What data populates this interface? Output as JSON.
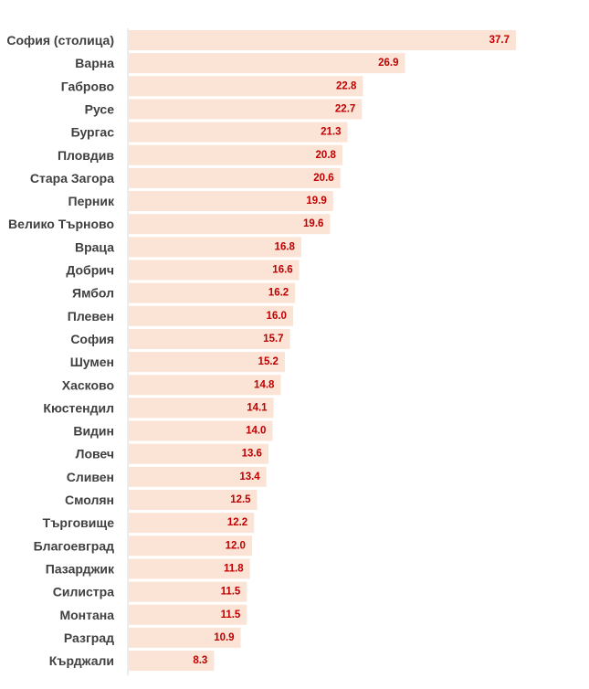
{
  "chart_data": {
    "type": "bar",
    "orientation": "horizontal",
    "title": "",
    "xlabel": "",
    "ylabel": "",
    "xlim": [
      0,
      37.7
    ],
    "grid": false,
    "legend": "none",
    "bar_color": "#fbe3d6",
    "value_label_color": "#c00000",
    "category_label_color": "#404040",
    "axis_color": "#d9d9d9",
    "categories": [
      "София (столица)",
      "Варна",
      "Габрово",
      "Русе",
      "Бургас",
      "Пловдив",
      "Стара Загора",
      "Перник",
      "Велико Търново",
      "Враца",
      "Добрич",
      "Ямбол",
      "Плевен",
      "София",
      "Шумен",
      "Хасково",
      "Кюстендил",
      "Видин",
      "Ловеч",
      "Сливен",
      "Смолян",
      "Търговище",
      "Благоевград",
      "Пазарджик",
      "Силистра",
      "Монтана",
      "Разград",
      "Кърджали"
    ],
    "values": [
      37.7,
      26.9,
      22.8,
      22.7,
      21.3,
      20.8,
      20.6,
      19.9,
      19.6,
      16.8,
      16.6,
      16.2,
      16.0,
      15.7,
      15.2,
      14.8,
      14.1,
      14.0,
      13.6,
      13.4,
      12.5,
      12.2,
      12.0,
      11.8,
      11.5,
      11.5,
      10.9,
      8.3
    ],
    "value_labels": [
      "37.7",
      "26.9",
      "22.8",
      "22.7",
      "21.3",
      "20.8",
      "20.6",
      "19.9",
      "19.6",
      "16.8",
      "16.6",
      "16.2",
      "16.0",
      "15.7",
      "15.2",
      "14.8",
      "14.1",
      "14.0",
      "13.6",
      "13.4",
      "12.5",
      "12.2",
      "12.0",
      "11.8",
      "11.5",
      "11.5",
      "10.9",
      "8.3"
    ]
  }
}
